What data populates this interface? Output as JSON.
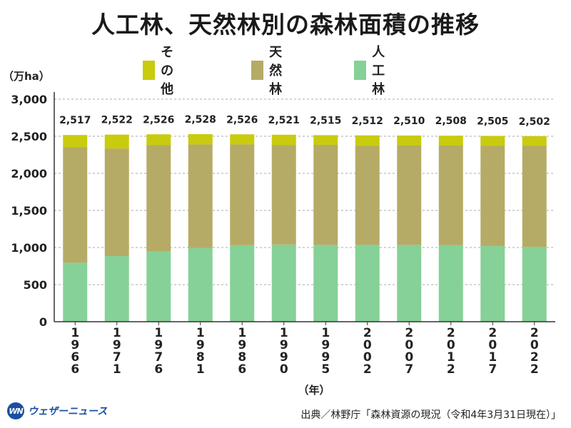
{
  "chart_data": {
    "type": "bar",
    "stacked": true,
    "title": "人工林、天然林別の森林面積の推移",
    "ylabel": "（万ha）",
    "xlabel": "（年）",
    "ylim": [
      0,
      3000
    ],
    "yticks": [
      0,
      500,
      1000,
      1500,
      2000,
      2500,
      3000
    ],
    "ytick_labels": [
      "0",
      "500",
      "1,000",
      "1,500",
      "2,000",
      "2,500",
      "3,000"
    ],
    "categories": [
      "1966",
      "1971",
      "1976",
      "1981",
      "1986",
      "1990",
      "1995",
      "2002",
      "2007",
      "2012",
      "2017",
      "2022"
    ],
    "series": [
      {
        "name": "人工林",
        "color": "#86d197",
        "values": [
          795,
          885,
          945,
          995,
          1030,
          1040,
          1035,
          1035,
          1035,
          1030,
          1020,
          1010
        ]
      },
      {
        "name": "天然林",
        "color": "#b5ab66",
        "values": [
          1560,
          1450,
          1435,
          1395,
          1360,
          1340,
          1350,
          1335,
          1340,
          1345,
          1350,
          1360
        ]
      },
      {
        "name": "その他",
        "color": "#c9cb0e",
        "values": [
          162,
          187,
          146,
          138,
          136,
          141,
          130,
          142,
          135,
          133,
          135,
          132
        ]
      }
    ],
    "totals": [
      2517,
      2522,
      2526,
      2528,
      2526,
      2521,
      2515,
      2512,
      2510,
      2508,
      2505,
      2502
    ],
    "total_labels": [
      "2,517",
      "2,522",
      "2,526",
      "2,528",
      "2,526",
      "2,521",
      "2,515",
      "2,512",
      "2,510",
      "2,508",
      "2,505",
      "2,502"
    ],
    "legend": [
      "その他",
      "天然林",
      "人工林"
    ],
    "grid": true
  },
  "footer": {
    "logo_mark": "WN",
    "logo_text": "ウェザーニュース",
    "source": "出典／林野庁「森林資源の現況（令和4年3月31日現在）」"
  }
}
